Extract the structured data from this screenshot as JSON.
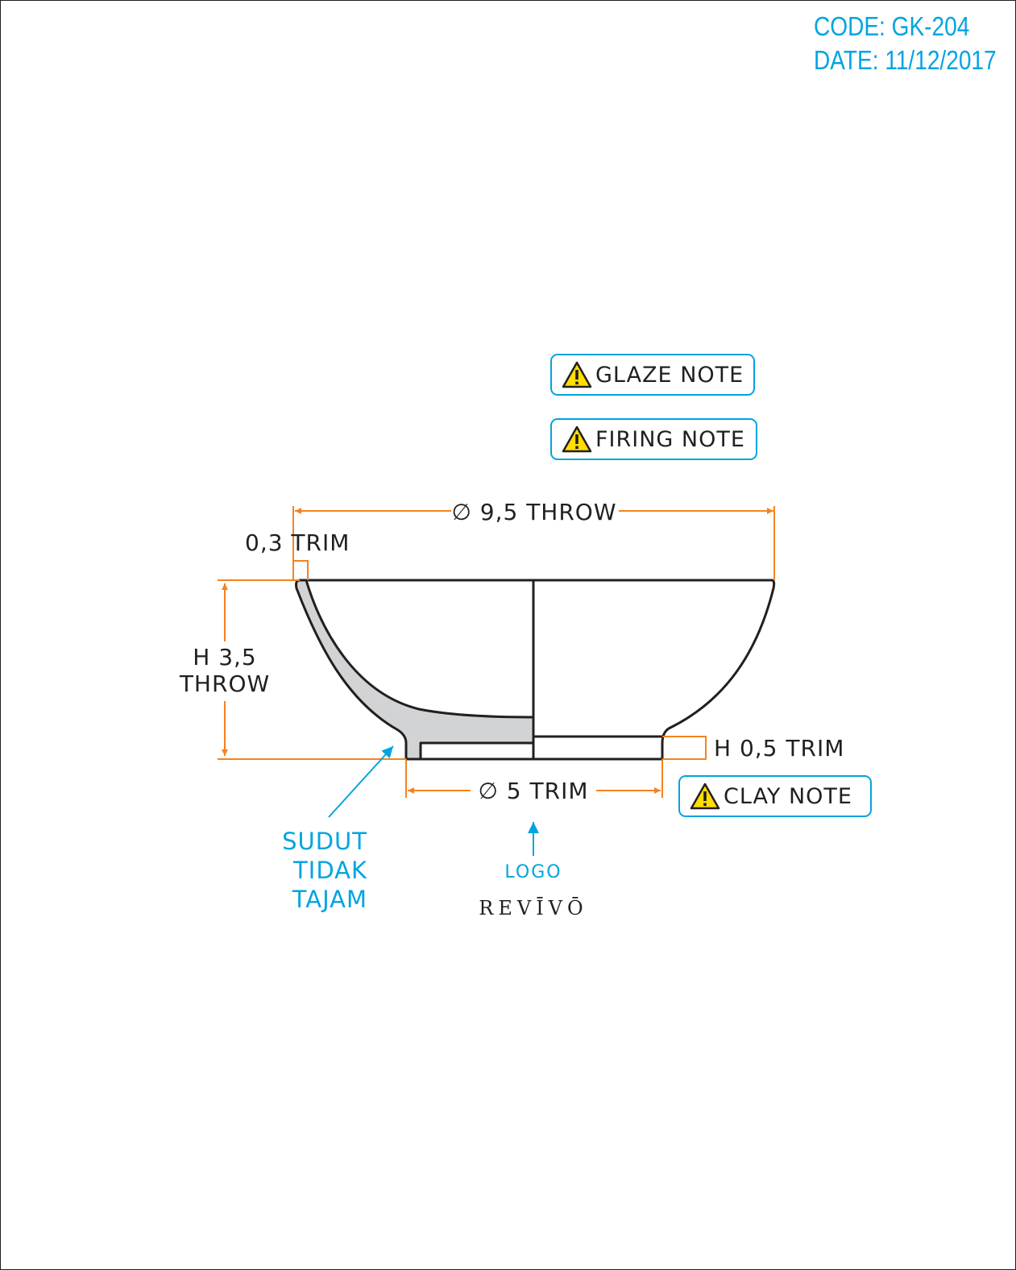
{
  "header": {
    "code": "CODE: GK-204",
    "date": "DATE: 11/12/2017"
  },
  "notes": {
    "glaze": "GLAZE NOTE",
    "firing": "FIRING NOTE",
    "clay": "CLAY NOTE"
  },
  "dimensions": {
    "diameter_throw": "∅ 9,5 THROW",
    "rim_trim": "0,3 TRIM",
    "height_throw_line1": "H 3,5",
    "height_throw_line2": "THROW",
    "foot_height_trim": "H 0,5 TRIM",
    "foot_diameter_trim": "∅ 5 TRIM"
  },
  "annotations": {
    "corner_line1": "SUDUT",
    "corner_line2": "TIDAK",
    "corner_line3": "TAJAM",
    "logo_label": "LOGO",
    "brand": "REVĪVŌ"
  },
  "colors": {
    "accent_blue": "#00a4e0",
    "dimension_orange": "#f58220",
    "outline": "#231f20",
    "section_fill": "#d1d3d4"
  }
}
